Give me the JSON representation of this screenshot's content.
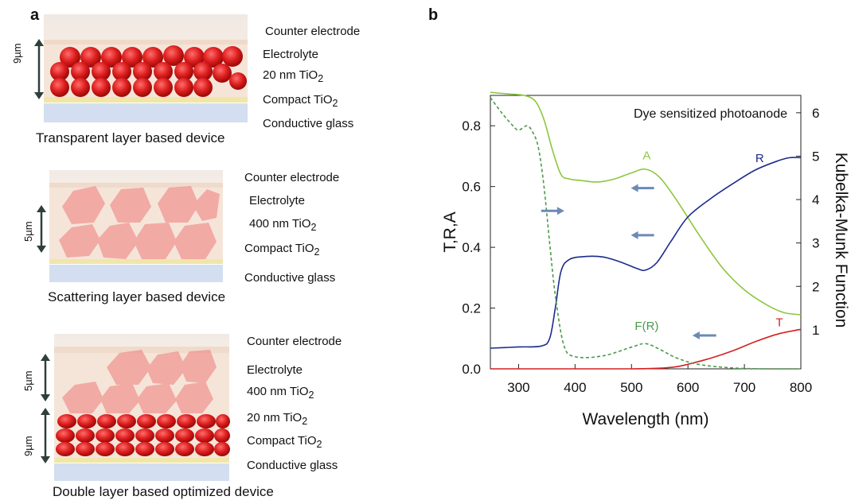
{
  "panel_a": {
    "letter": "a",
    "devices": [
      {
        "caption": "Transparent layer based device",
        "labels": [
          "Counter electrode",
          "Electrolyte",
          "20 nm TiO2",
          "Compact TiO2",
          "Conductive glass"
        ],
        "thickness": [
          "9µm"
        ]
      },
      {
        "caption": "Scattering layer based device",
        "labels": [
          "Counter electrode",
          "Electrolyte",
          "400 nm TiO2",
          "Compact TiO2",
          "Conductive glass"
        ],
        "thickness": [
          "5µm"
        ]
      },
      {
        "caption": "Double layer based optimized device",
        "labels": [
          "Counter electrode",
          "Electrolyte",
          "400 nm TiO2",
          "20 nm TiO2",
          "Compact TiO2",
          "Conductive glass"
        ],
        "thickness": [
          "5µm",
          "9µm"
        ]
      }
    ]
  },
  "panel_b": {
    "letter": "b",
    "colors": {
      "A": "#8dc63f",
      "R": "#1b2b8c",
      "T": "#d42020",
      "FR": "#4a9a4a",
      "arrow": "#6b8ab8"
    }
  },
  "chart_data": {
    "type": "line",
    "title": "Dye sensitized photoanode",
    "xlabel": "Wavelength (nm)",
    "ylabel": "T,R,A",
    "y2label": "Kubelka-Munk Function",
    "xlim": [
      250,
      800
    ],
    "ylim": [
      0,
      0.9
    ],
    "y2lim": [
      0.1,
      6.4
    ],
    "xticks": [
      300,
      400,
      500,
      600,
      700,
      800
    ],
    "yticks": [
      0.0,
      0.2,
      0.4,
      0.6,
      0.8
    ],
    "y2ticks": [
      1,
      2,
      3,
      4,
      5,
      6
    ],
    "series": [
      {
        "name": "A",
        "axis": "left",
        "style": "solid",
        "x": [
          250,
          280,
          310,
          330,
          345,
          360,
          375,
          390,
          410,
          440,
          470,
          500,
          525,
          550,
          580,
          620,
          660,
          700,
          740,
          770,
          800
        ],
        "y": [
          0.91,
          0.905,
          0.9,
          0.88,
          0.82,
          0.72,
          0.64,
          0.625,
          0.62,
          0.615,
          0.625,
          0.645,
          0.657,
          0.63,
          0.555,
          0.44,
          0.335,
          0.26,
          0.21,
          0.185,
          0.178
        ]
      },
      {
        "name": "R",
        "axis": "left",
        "style": "solid",
        "x": [
          250,
          300,
          340,
          355,
          365,
          375,
          390,
          420,
          450,
          480,
          510,
          525,
          545,
          570,
          600,
          640,
          680,
          720,
          760,
          780,
          800
        ],
        "y": [
          0.068,
          0.072,
          0.075,
          0.1,
          0.2,
          0.32,
          0.36,
          0.37,
          0.368,
          0.352,
          0.33,
          0.325,
          0.35,
          0.42,
          0.5,
          0.56,
          0.61,
          0.655,
          0.685,
          0.695,
          0.695
        ]
      },
      {
        "name": "T",
        "axis": "left",
        "style": "solid",
        "x": [
          250,
          400,
          500,
          550,
          580,
          600,
          640,
          680,
          720,
          760,
          800
        ],
        "y": [
          0.0,
          0.0,
          0.0,
          0.002,
          0.007,
          0.015,
          0.035,
          0.06,
          0.09,
          0.115,
          0.13
        ]
      },
      {
        "name": "F(R)",
        "axis": "right",
        "style": "dashed",
        "x": [
          250,
          270,
          290,
          300,
          315,
          325,
          335,
          345,
          355,
          365,
          380,
          400,
          450,
          500,
          525,
          550,
          580,
          620,
          680,
          740,
          800
        ],
        "y": [
          6.35,
          6.0,
          5.7,
          5.6,
          5.7,
          5.55,
          5.2,
          4.3,
          3.0,
          1.8,
          0.65,
          0.38,
          0.4,
          0.6,
          0.68,
          0.55,
          0.35,
          0.2,
          0.12,
          0.1,
          0.1
        ]
      }
    ],
    "annotations": [
      "A",
      "R",
      "T",
      "F(R)"
    ]
  }
}
